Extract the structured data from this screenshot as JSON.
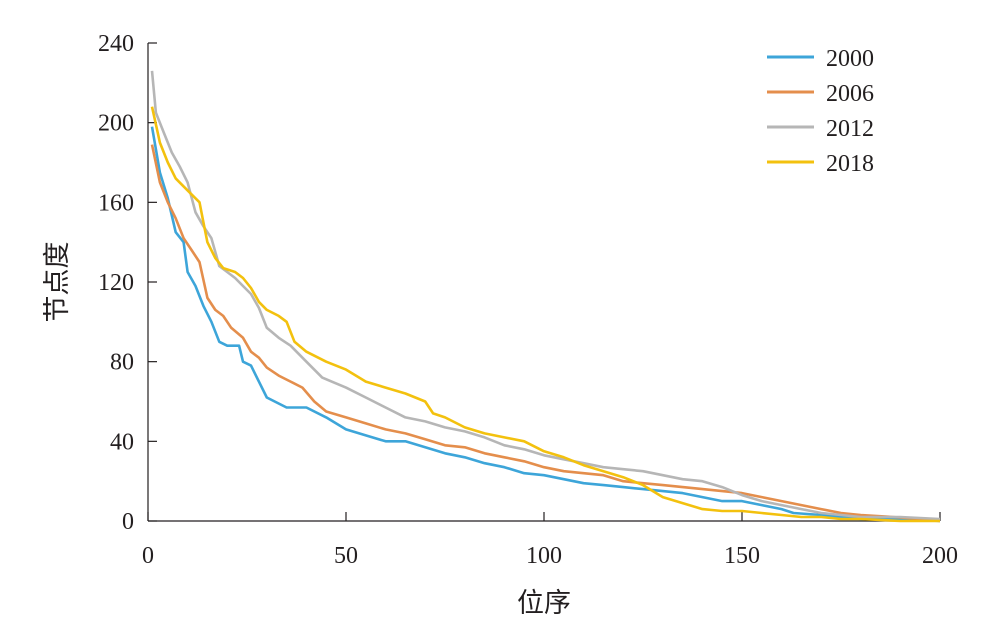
{
  "chart_data": {
    "type": "line",
    "title": "",
    "xlabel": "位序",
    "ylabel": "节点度",
    "xlim": [
      0,
      200
    ],
    "ylim": [
      0,
      240
    ],
    "x_ticks": [
      0,
      50,
      100,
      150,
      200
    ],
    "y_ticks": [
      0,
      40,
      80,
      120,
      160,
      200,
      240
    ],
    "grid": false,
    "legend_position": "top-right",
    "series": [
      {
        "name": "2000",
        "color": "#3da5d9",
        "points": [
          [
            1,
            198
          ],
          [
            3,
            175
          ],
          [
            5,
            162
          ],
          [
            7,
            145
          ],
          [
            9,
            140
          ],
          [
            10,
            125
          ],
          [
            12,
            118
          ],
          [
            14,
            108
          ],
          [
            16,
            100
          ],
          [
            18,
            90
          ],
          [
            20,
            88
          ],
          [
            23,
            88
          ],
          [
            24,
            80
          ],
          [
            26,
            78
          ],
          [
            28,
            70
          ],
          [
            30,
            62
          ],
          [
            32,
            60
          ],
          [
            35,
            57
          ],
          [
            40,
            57
          ],
          [
            45,
            52
          ],
          [
            50,
            46
          ],
          [
            55,
            43
          ],
          [
            60,
            40
          ],
          [
            65,
            40
          ],
          [
            70,
            37
          ],
          [
            75,
            34
          ],
          [
            80,
            32
          ],
          [
            85,
            29
          ],
          [
            90,
            27
          ],
          [
            95,
            24
          ],
          [
            100,
            23
          ],
          [
            105,
            21
          ],
          [
            110,
            19
          ],
          [
            115,
            18
          ],
          [
            120,
            17
          ],
          [
            125,
            16
          ],
          [
            130,
            15
          ],
          [
            135,
            14
          ],
          [
            140,
            12
          ],
          [
            145,
            10
          ],
          [
            150,
            10
          ],
          [
            155,
            8
          ],
          [
            160,
            6
          ],
          [
            163,
            4
          ],
          [
            170,
            3
          ],
          [
            175,
            2
          ],
          [
            180,
            1
          ],
          [
            190,
            1
          ],
          [
            200,
            0
          ]
        ]
      },
      {
        "name": "2006",
        "color": "#e48e4c",
        "points": [
          [
            1,
            189
          ],
          [
            3,
            170
          ],
          [
            5,
            160
          ],
          [
            7,
            152
          ],
          [
            9,
            142
          ],
          [
            11,
            136
          ],
          [
            13,
            130
          ],
          [
            15,
            112
          ],
          [
            17,
            106
          ],
          [
            19,
            103
          ],
          [
            21,
            97
          ],
          [
            24,
            92
          ],
          [
            26,
            85
          ],
          [
            28,
            82
          ],
          [
            30,
            77
          ],
          [
            33,
            73
          ],
          [
            36,
            70
          ],
          [
            39,
            67
          ],
          [
            42,
            60
          ],
          [
            45,
            55
          ],
          [
            50,
            52
          ],
          [
            55,
            49
          ],
          [
            60,
            46
          ],
          [
            65,
            44
          ],
          [
            70,
            41
          ],
          [
            75,
            38
          ],
          [
            80,
            37
          ],
          [
            85,
            34
          ],
          [
            90,
            32
          ],
          [
            95,
            30
          ],
          [
            100,
            27
          ],
          [
            105,
            25
          ],
          [
            110,
            24
          ],
          [
            115,
            23
          ],
          [
            120,
            20
          ],
          [
            125,
            19
          ],
          [
            130,
            18
          ],
          [
            135,
            17
          ],
          [
            140,
            16
          ],
          [
            145,
            15
          ],
          [
            150,
            14
          ],
          [
            155,
            12
          ],
          [
            160,
            10
          ],
          [
            165,
            8
          ],
          [
            170,
            6
          ],
          [
            175,
            4
          ],
          [
            180,
            3
          ],
          [
            188,
            2
          ],
          [
            195,
            1
          ],
          [
            200,
            0
          ]
        ]
      },
      {
        "name": "2012",
        "color": "#b6b6b6",
        "points": [
          [
            1,
            226
          ],
          [
            2,
            205
          ],
          [
            4,
            195
          ],
          [
            6,
            185
          ],
          [
            8,
            178
          ],
          [
            10,
            170
          ],
          [
            12,
            155
          ],
          [
            14,
            148
          ],
          [
            16,
            142
          ],
          [
            18,
            128
          ],
          [
            20,
            125
          ],
          [
            22,
            122
          ],
          [
            24,
            118
          ],
          [
            26,
            114
          ],
          [
            28,
            107
          ],
          [
            30,
            97
          ],
          [
            33,
            92
          ],
          [
            36,
            88
          ],
          [
            40,
            80
          ],
          [
            44,
            72
          ],
          [
            50,
            67
          ],
          [
            55,
            62
          ],
          [
            60,
            57
          ],
          [
            65,
            52
          ],
          [
            70,
            50
          ],
          [
            75,
            47
          ],
          [
            80,
            45
          ],
          [
            85,
            42
          ],
          [
            90,
            38
          ],
          [
            95,
            36
          ],
          [
            100,
            33
          ],
          [
            105,
            31
          ],
          [
            110,
            29
          ],
          [
            115,
            27
          ],
          [
            120,
            26
          ],
          [
            125,
            25
          ],
          [
            130,
            23
          ],
          [
            135,
            21
          ],
          [
            140,
            20
          ],
          [
            145,
            17
          ],
          [
            150,
            13
          ],
          [
            155,
            10
          ],
          [
            160,
            8
          ],
          [
            165,
            6
          ],
          [
            170,
            4
          ],
          [
            175,
            3
          ],
          [
            180,
            2
          ],
          [
            190,
            2
          ],
          [
            200,
            1
          ]
        ]
      },
      {
        "name": "2018",
        "color": "#f3c10e",
        "points": [
          [
            1,
            208
          ],
          [
            3,
            190
          ],
          [
            5,
            180
          ],
          [
            7,
            172
          ],
          [
            9,
            168
          ],
          [
            11,
            164
          ],
          [
            13,
            160
          ],
          [
            14,
            150
          ],
          [
            15,
            140
          ],
          [
            17,
            132
          ],
          [
            19,
            127
          ],
          [
            22,
            125
          ],
          [
            24,
            122
          ],
          [
            26,
            117
          ],
          [
            28,
            110
          ],
          [
            30,
            106
          ],
          [
            33,
            103
          ],
          [
            35,
            100
          ],
          [
            37,
            90
          ],
          [
            40,
            85
          ],
          [
            45,
            80
          ],
          [
            50,
            76
          ],
          [
            55,
            70
          ],
          [
            60,
            67
          ],
          [
            65,
            64
          ],
          [
            70,
            60
          ],
          [
            72,
            54
          ],
          [
            75,
            52
          ],
          [
            80,
            47
          ],
          [
            85,
            44
          ],
          [
            90,
            42
          ],
          [
            95,
            40
          ],
          [
            100,
            35
          ],
          [
            105,
            32
          ],
          [
            110,
            28
          ],
          [
            115,
            25
          ],
          [
            120,
            22
          ],
          [
            125,
            18
          ],
          [
            130,
            12
          ],
          [
            135,
            9
          ],
          [
            140,
            6
          ],
          [
            145,
            5
          ],
          [
            150,
            5
          ],
          [
            155,
            4
          ],
          [
            160,
            3
          ],
          [
            165,
            2
          ],
          [
            170,
            2
          ],
          [
            175,
            1
          ],
          [
            180,
            1
          ],
          [
            190,
            0
          ],
          [
            200,
            0
          ]
        ]
      }
    ]
  }
}
